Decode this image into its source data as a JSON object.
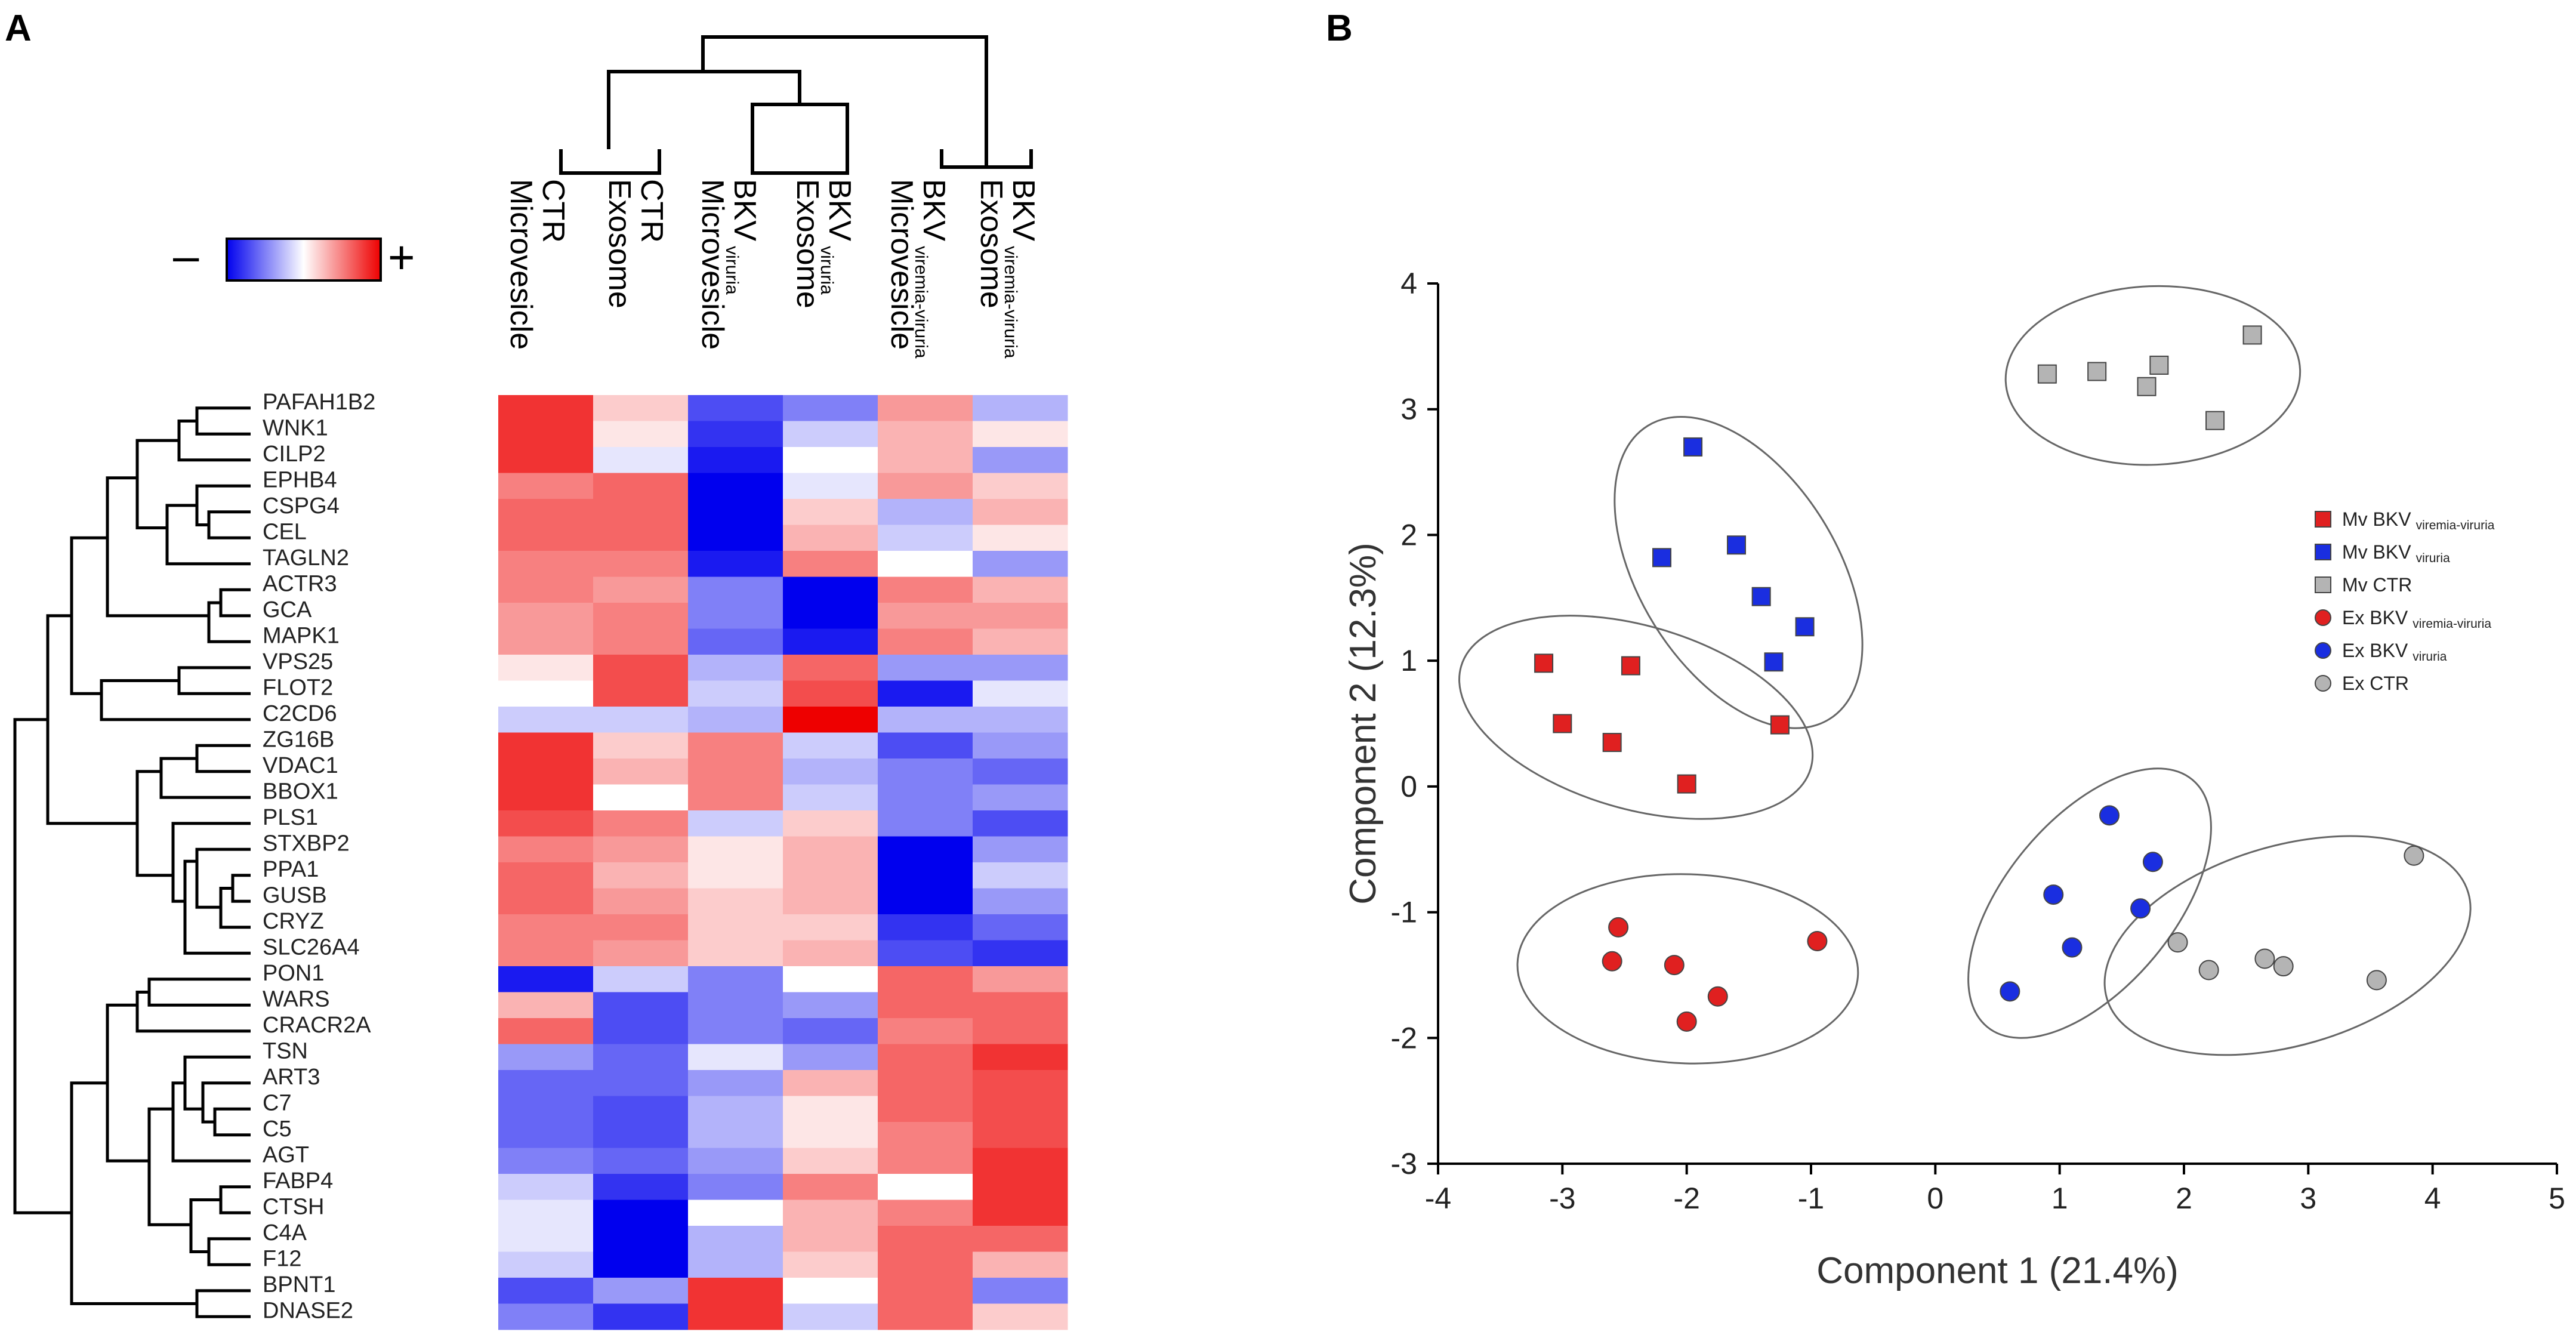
{
  "panels": {
    "a": "A",
    "b": "B"
  },
  "legend_scale": {
    "minus": "–",
    "plus": "+"
  },
  "chart_data": [
    {
      "type": "heatmap",
      "columns": [
        {
          "main": "CTR",
          "second": "Microvesicle",
          "sub": ""
        },
        {
          "main": "CTR",
          "second": "Exosome",
          "sub": ""
        },
        {
          "main": "BKV",
          "second": "Microvesicle",
          "sub": "viruria"
        },
        {
          "main": "BKV",
          "second": "Exosome",
          "sub": "viruria"
        },
        {
          "main": "BKV",
          "second": "Microvesicle",
          "sub": "viremia-viruria"
        },
        {
          "main": "BKV",
          "second": "Exosome",
          "sub": "viremia-viruria"
        }
      ],
      "rows": [
        "PAFAH1B2",
        "WNK1",
        "CILP2",
        "EPHB4",
        "CSPG4",
        "CEL",
        "TAGLN2",
        "ACTR3",
        "GCA",
        "MAPK1",
        "VPS25",
        "FLOT2",
        "C2CD6",
        "ZG16B",
        "VDAC1",
        "BBOX1",
        "PLS1",
        "STXBP2",
        "PPA1",
        "GUSB",
        "CRYZ",
        "SLC26A4",
        "PON1",
        "WARS",
        "CRACR2A",
        "TSN",
        "ART3",
        "C7",
        "C5",
        "AGT",
        "FABP4",
        "CTSH",
        "C4A",
        "F12",
        "BPNT1",
        "DNASE2"
      ],
      "values": [
        [
          0.8,
          0.2,
          -0.7,
          -0.5,
          0.4,
          -0.3
        ],
        [
          0.8,
          0.1,
          -0.8,
          -0.2,
          0.3,
          0.1
        ],
        [
          0.8,
          -0.1,
          -0.9,
          0.0,
          0.3,
          -0.4
        ],
        [
          0.5,
          0.6,
          -1.0,
          -0.1,
          0.4,
          0.2
        ],
        [
          0.6,
          0.6,
          -1.0,
          0.2,
          -0.3,
          0.3
        ],
        [
          0.6,
          0.6,
          -1.0,
          0.3,
          -0.2,
          0.1
        ],
        [
          0.5,
          0.5,
          -0.9,
          0.5,
          0.0,
          -0.4
        ],
        [
          0.5,
          0.4,
          -0.5,
          -1.0,
          0.5,
          0.3
        ],
        [
          0.4,
          0.5,
          -0.5,
          -1.0,
          0.4,
          0.4
        ],
        [
          0.4,
          0.5,
          -0.6,
          -0.9,
          0.5,
          0.3
        ],
        [
          0.1,
          0.7,
          -0.3,
          0.6,
          -0.4,
          -0.4
        ],
        [
          0.0,
          0.7,
          -0.2,
          0.7,
          -0.9,
          -0.1
        ],
        [
          -0.2,
          -0.2,
          -0.3,
          1.0,
          -0.3,
          -0.3
        ],
        [
          0.8,
          0.2,
          0.5,
          -0.2,
          -0.7,
          -0.4
        ],
        [
          0.8,
          0.3,
          0.5,
          -0.3,
          -0.5,
          -0.6
        ],
        [
          0.8,
          0.0,
          0.5,
          -0.2,
          -0.5,
          -0.4
        ],
        [
          0.7,
          0.5,
          -0.2,
          0.2,
          -0.5,
          -0.7
        ],
        [
          0.5,
          0.4,
          0.1,
          0.3,
          -1.0,
          -0.4
        ],
        [
          0.6,
          0.3,
          0.1,
          0.3,
          -1.0,
          -0.2
        ],
        [
          0.6,
          0.4,
          0.2,
          0.3,
          -1.0,
          -0.4
        ],
        [
          0.5,
          0.5,
          0.2,
          0.2,
          -0.8,
          -0.6
        ],
        [
          0.5,
          0.4,
          0.2,
          0.3,
          -0.7,
          -0.8
        ],
        [
          -0.9,
          -0.2,
          -0.5,
          0.0,
          0.6,
          0.4
        ],
        [
          0.3,
          -0.7,
          -0.5,
          -0.4,
          0.6,
          0.6
        ],
        [
          0.6,
          -0.7,
          -0.5,
          -0.6,
          0.5,
          0.6
        ],
        [
          -0.4,
          -0.6,
          -0.1,
          -0.4,
          0.6,
          0.8
        ],
        [
          -0.6,
          -0.6,
          -0.4,
          0.3,
          0.6,
          0.7
        ],
        [
          -0.6,
          -0.7,
          -0.3,
          0.1,
          0.6,
          0.7
        ],
        [
          -0.6,
          -0.7,
          -0.3,
          0.1,
          0.5,
          0.7
        ],
        [
          -0.5,
          -0.6,
          -0.4,
          0.2,
          0.5,
          0.8
        ],
        [
          -0.2,
          -0.8,
          -0.5,
          0.5,
          0.0,
          0.8
        ],
        [
          -0.1,
          -1.0,
          0.0,
          0.3,
          0.5,
          0.8
        ],
        [
          -0.1,
          -1.0,
          -0.3,
          0.3,
          0.6,
          0.6
        ],
        [
          -0.2,
          -1.0,
          -0.3,
          0.2,
          0.6,
          0.3
        ],
        [
          -0.7,
          -0.4,
          0.8,
          0.0,
          0.6,
          -0.5
        ],
        [
          -0.5,
          -0.8,
          0.8,
          -0.2,
          0.6,
          0.2
        ]
      ],
      "color_scale": {
        "low": "#0000ee",
        "mid": "#ffffff",
        "high": "#ee0000"
      }
    },
    {
      "type": "scatter",
      "xlabel": "Component 1 (21.4%)",
      "ylabel": "Component 2 (12.3%)",
      "xlim": [
        -4,
        5
      ],
      "ylim": [
        -3,
        4
      ],
      "xticks": [
        -4,
        -3,
        -2,
        -1,
        0,
        1,
        2,
        3,
        4,
        5
      ],
      "yticks": [
        -3,
        -2,
        -1,
        0,
        1,
        2,
        3,
        4
      ],
      "series": [
        {
          "name": "Mv BKV",
          "sub": "viremia-viruria",
          "marker": "square",
          "color": "#e02020",
          "points": [
            [
              -3.15,
              0.98
            ],
            [
              -3.0,
              0.5
            ],
            [
              -2.6,
              0.35
            ],
            [
              -2.45,
              0.96
            ],
            [
              -2.0,
              0.02
            ],
            [
              -1.25,
              0.49
            ]
          ]
        },
        {
          "name": "Mv BKV",
          "sub": "viruria",
          "marker": "square",
          "color": "#1a2ee0",
          "points": [
            [
              -1.95,
              2.7
            ],
            [
              -2.2,
              1.82
            ],
            [
              -1.6,
              1.92
            ],
            [
              -1.4,
              1.51
            ],
            [
              -1.05,
              1.27
            ],
            [
              -1.3,
              0.99
            ]
          ]
        },
        {
          "name": "Mv CTR",
          "sub": "",
          "marker": "square",
          "color": "#b4b4b4",
          "points": [
            [
              0.9,
              3.28
            ],
            [
              1.3,
              3.3
            ],
            [
              1.7,
              3.18
            ],
            [
              1.8,
              3.35
            ],
            [
              2.55,
              3.59
            ],
            [
              2.25,
              2.91
            ]
          ]
        },
        {
          "name": "Ex BKV",
          "sub": "viremia-viruria",
          "marker": "circle",
          "color": "#e02020",
          "points": [
            [
              -2.55,
              -1.12
            ],
            [
              -2.6,
              -1.39
            ],
            [
              -2.1,
              -1.42
            ],
            [
              -1.75,
              -1.67
            ],
            [
              -2.0,
              -1.87
            ],
            [
              -0.95,
              -1.23
            ]
          ]
        },
        {
          "name": "Ex BKV",
          "sub": "viruria",
          "marker": "circle",
          "color": "#1a2ee0",
          "points": [
            [
              1.4,
              -0.23
            ],
            [
              1.75,
              -0.6
            ],
            [
              0.95,
              -0.86
            ],
            [
              1.65,
              -0.97
            ],
            [
              1.1,
              -1.28
            ],
            [
              0.6,
              -1.63
            ]
          ]
        },
        {
          "name": "Ex CTR",
          "sub": "",
          "marker": "circle",
          "color": "#b4b4b4",
          "points": [
            [
              3.85,
              -0.55
            ],
            [
              1.95,
              -1.24
            ],
            [
              2.2,
              -1.46
            ],
            [
              2.65,
              -1.37
            ],
            [
              2.8,
              -1.43
            ],
            [
              3.55,
              -1.54
            ]
          ]
        }
      ],
      "legend_position": "right"
    }
  ]
}
